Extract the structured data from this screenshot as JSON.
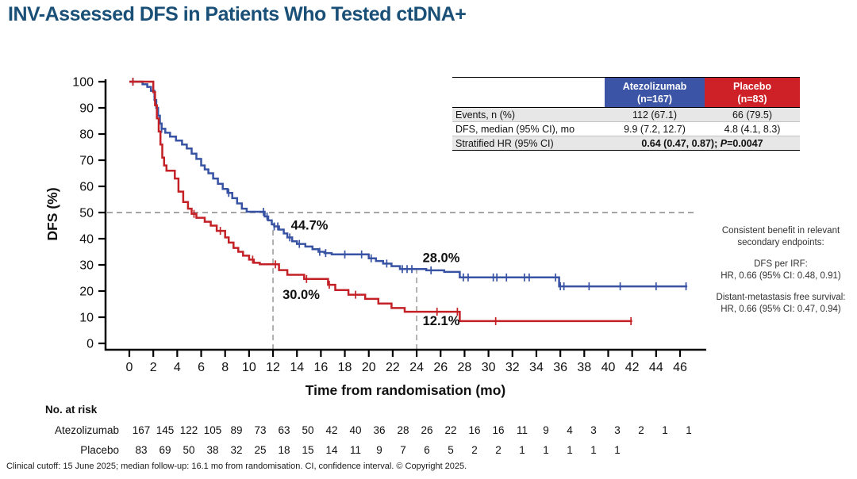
{
  "title": "INV-Assessed DFS in Patients Who Tested ctDNA+",
  "footer": "Clinical cutoff: 15 June 2025; median follow-up: 16.1 mo from randomisation. CI, confidence interval. © Copyright 2025.",
  "colors": {
    "atezolizumab_blue": "#3853A4",
    "placebo_red": "#C42127",
    "title_navy": "#1A5077",
    "reference_gray": "#999999"
  },
  "summary_table": {
    "columns": [
      {
        "label": "Atezolizumab",
        "sub": "(n=167)",
        "color": "#3B54A5"
      },
      {
        "label": "Placebo",
        "sub": "(n=83)",
        "color": "#CE2127"
      }
    ],
    "rows": [
      {
        "label": "Events, n (%)",
        "atezolizumab": "112 (67.1)",
        "placebo": "66 (79.5)"
      },
      {
        "label": "DFS, median (95% CI), mo",
        "atezolizumab": "9.9 (7.2, 12.7)",
        "placebo": "4.8 (4.1, 8.3)"
      },
      {
        "label": "Stratified HR (95% CI)",
        "value": "0.64 (0.47, 0.87); ",
        "p_label": "P",
        "p_value": "=0.0047"
      }
    ]
  },
  "side_note": {
    "heading": "Consistent benefit in relevant secondary endpoints:",
    "items": [
      {
        "label": "DFS per IRF:",
        "value": "HR, 0.66 (95% CI: 0.48, 0.91)"
      },
      {
        "label": "Distant-metastasis free survival:",
        "value": "HR, 0.66 (95% CI: 0.47, 0.94)"
      }
    ]
  },
  "chart_data": {
    "type": "line",
    "subtype": "kaplan-meier-step",
    "xlabel": "Time from randomisation (mo)",
    "ylabel": "DFS (%)",
    "xlim": [
      0,
      47
    ],
    "ylim": [
      0,
      100
    ],
    "grid": false,
    "xticks": [
      0,
      2,
      4,
      6,
      8,
      10,
      12,
      14,
      16,
      18,
      20,
      22,
      24,
      26,
      28,
      30,
      32,
      34,
      36,
      38,
      40,
      42,
      44,
      46
    ],
    "yticks": [
      0,
      10,
      20,
      30,
      40,
      50,
      60,
      70,
      80,
      90,
      100
    ],
    "reference_lines": {
      "horizontal_pct": 50,
      "vertical": [
        {
          "x": 12,
          "to_pct": 45.0
        },
        {
          "x": 24,
          "to_pct": 28.4
        }
      ]
    },
    "series": [
      {
        "name": "Atezolizumab",
        "color": "#3853A4",
        "landmarks": {
          "12mo": 44.7,
          "24mo": 28.0
        },
        "steps": [
          [
            0,
            100
          ],
          [
            1.1,
            99
          ],
          [
            1.5,
            98
          ],
          [
            1.8,
            96.5
          ],
          [
            2.1,
            93
          ],
          [
            2.25,
            90
          ],
          [
            2.4,
            87
          ],
          [
            2.55,
            84
          ],
          [
            2.7,
            82
          ],
          [
            3.0,
            80.5
          ],
          [
            3.4,
            79
          ],
          [
            3.9,
            77.5
          ],
          [
            4.4,
            76
          ],
          [
            4.8,
            74.5
          ],
          [
            5.2,
            72.5
          ],
          [
            5.6,
            70.5
          ],
          [
            6.0,
            68
          ],
          [
            6.3,
            66.5
          ],
          [
            6.6,
            65
          ],
          [
            7.0,
            63
          ],
          [
            7.4,
            61
          ],
          [
            7.8,
            59
          ],
          [
            8.2,
            57.5
          ],
          [
            8.6,
            55.5
          ],
          [
            9.0,
            53.5
          ],
          [
            9.4,
            51.5
          ],
          [
            9.8,
            50.3
          ],
          [
            11.3,
            48.5
          ],
          [
            11.6,
            47
          ],
          [
            11.9,
            45.5
          ],
          [
            12.1,
            44.7
          ],
          [
            12.5,
            43.5
          ],
          [
            12.9,
            42
          ],
          [
            13.2,
            40.5
          ],
          [
            13.6,
            39
          ],
          [
            14.0,
            38
          ],
          [
            14.7,
            37
          ],
          [
            15.3,
            36
          ],
          [
            15.8,
            35
          ],
          [
            16.3,
            34.5
          ],
          [
            16.9,
            34
          ],
          [
            20.0,
            32.5
          ],
          [
            20.6,
            31.5
          ],
          [
            21.2,
            30.5
          ],
          [
            21.9,
            29.5
          ],
          [
            22.6,
            28.4
          ],
          [
            24.8,
            27.9
          ],
          [
            26.3,
            27.3
          ],
          [
            27.6,
            25.2
          ],
          [
            35.9,
            21.8
          ],
          [
            46.6,
            21.8
          ]
        ],
        "censors": [
          0.3,
          2.7,
          8.3,
          11.2,
          11.5,
          12.1,
          12.4,
          13.4,
          14.2,
          15.9,
          16.4,
          18.0,
          19.4,
          20.2,
          21.5,
          22.8,
          23.2,
          23.6,
          25.2,
          27.9,
          28.3,
          30.4,
          30.7,
          31.5,
          33.0,
          33.4,
          35.6,
          36.0,
          36.3,
          38.4,
          41.0,
          44.0,
          46.5
        ],
        "annotations": [
          {
            "month": 13.5,
            "pct": 43.5,
            "text": "44.7%"
          },
          {
            "month": 24.5,
            "pct": 31.0,
            "text": "28.0%"
          }
        ]
      },
      {
        "name": "Placebo",
        "color": "#C42127",
        "landmarks": {
          "12mo": 30.0,
          "24mo": 12.1
        },
        "steps": [
          [
            0,
            100
          ],
          [
            2.0,
            96
          ],
          [
            2.15,
            91
          ],
          [
            2.3,
            86
          ],
          [
            2.45,
            81
          ],
          [
            2.6,
            76
          ],
          [
            2.75,
            71
          ],
          [
            2.9,
            68
          ],
          [
            3.1,
            66
          ],
          [
            3.8,
            63
          ],
          [
            4.1,
            58
          ],
          [
            4.5,
            54
          ],
          [
            4.9,
            51.5
          ],
          [
            5.2,
            49.5
          ],
          [
            5.6,
            48
          ],
          [
            6.3,
            46.5
          ],
          [
            6.8,
            45
          ],
          [
            7.3,
            43
          ],
          [
            8.0,
            40.5
          ],
          [
            8.3,
            38.5
          ],
          [
            8.7,
            36.5
          ],
          [
            9.1,
            35
          ],
          [
            9.5,
            33.5
          ],
          [
            10.0,
            32
          ],
          [
            10.4,
            30.8
          ],
          [
            10.9,
            30.2
          ],
          [
            12.5,
            28
          ],
          [
            13.2,
            26.2
          ],
          [
            14.6,
            24.6
          ],
          [
            16.6,
            22.4
          ],
          [
            17.2,
            20.4
          ],
          [
            18.3,
            18.6
          ],
          [
            19.7,
            17
          ],
          [
            20.8,
            15.2
          ],
          [
            21.9,
            13.5
          ],
          [
            23.0,
            12.1
          ],
          [
            27.6,
            8.5
          ],
          [
            42.0,
            8.5
          ]
        ],
        "censors": [
          0.3,
          5.4,
          7.6,
          10.3,
          12.2,
          14.8,
          16.7,
          18.9,
          25.7,
          27.4,
          30.6,
          41.9
        ],
        "annotations": [
          {
            "month": 12.8,
            "pct": 17.0,
            "text": "30.0%"
          },
          {
            "month": 24.5,
            "pct": 7.0,
            "text": "12.1%"
          }
        ]
      }
    ],
    "at_risk": {
      "label": "No. at risk",
      "rows": [
        {
          "name": "Atezolizumab",
          "color": "#3853A4",
          "values": [
            167,
            145,
            122,
            105,
            89,
            73,
            63,
            50,
            42,
            40,
            36,
            28,
            26,
            22,
            16,
            16,
            11,
            9,
            4,
            3,
            3,
            2,
            1,
            1
          ]
        },
        {
          "name": "Placebo",
          "color": "#C42127",
          "values": [
            83,
            69,
            50,
            38,
            32,
            25,
            18,
            15,
            14,
            11,
            9,
            7,
            6,
            5,
            2,
            2,
            1,
            1,
            1,
            1,
            1
          ]
        }
      ]
    }
  }
}
